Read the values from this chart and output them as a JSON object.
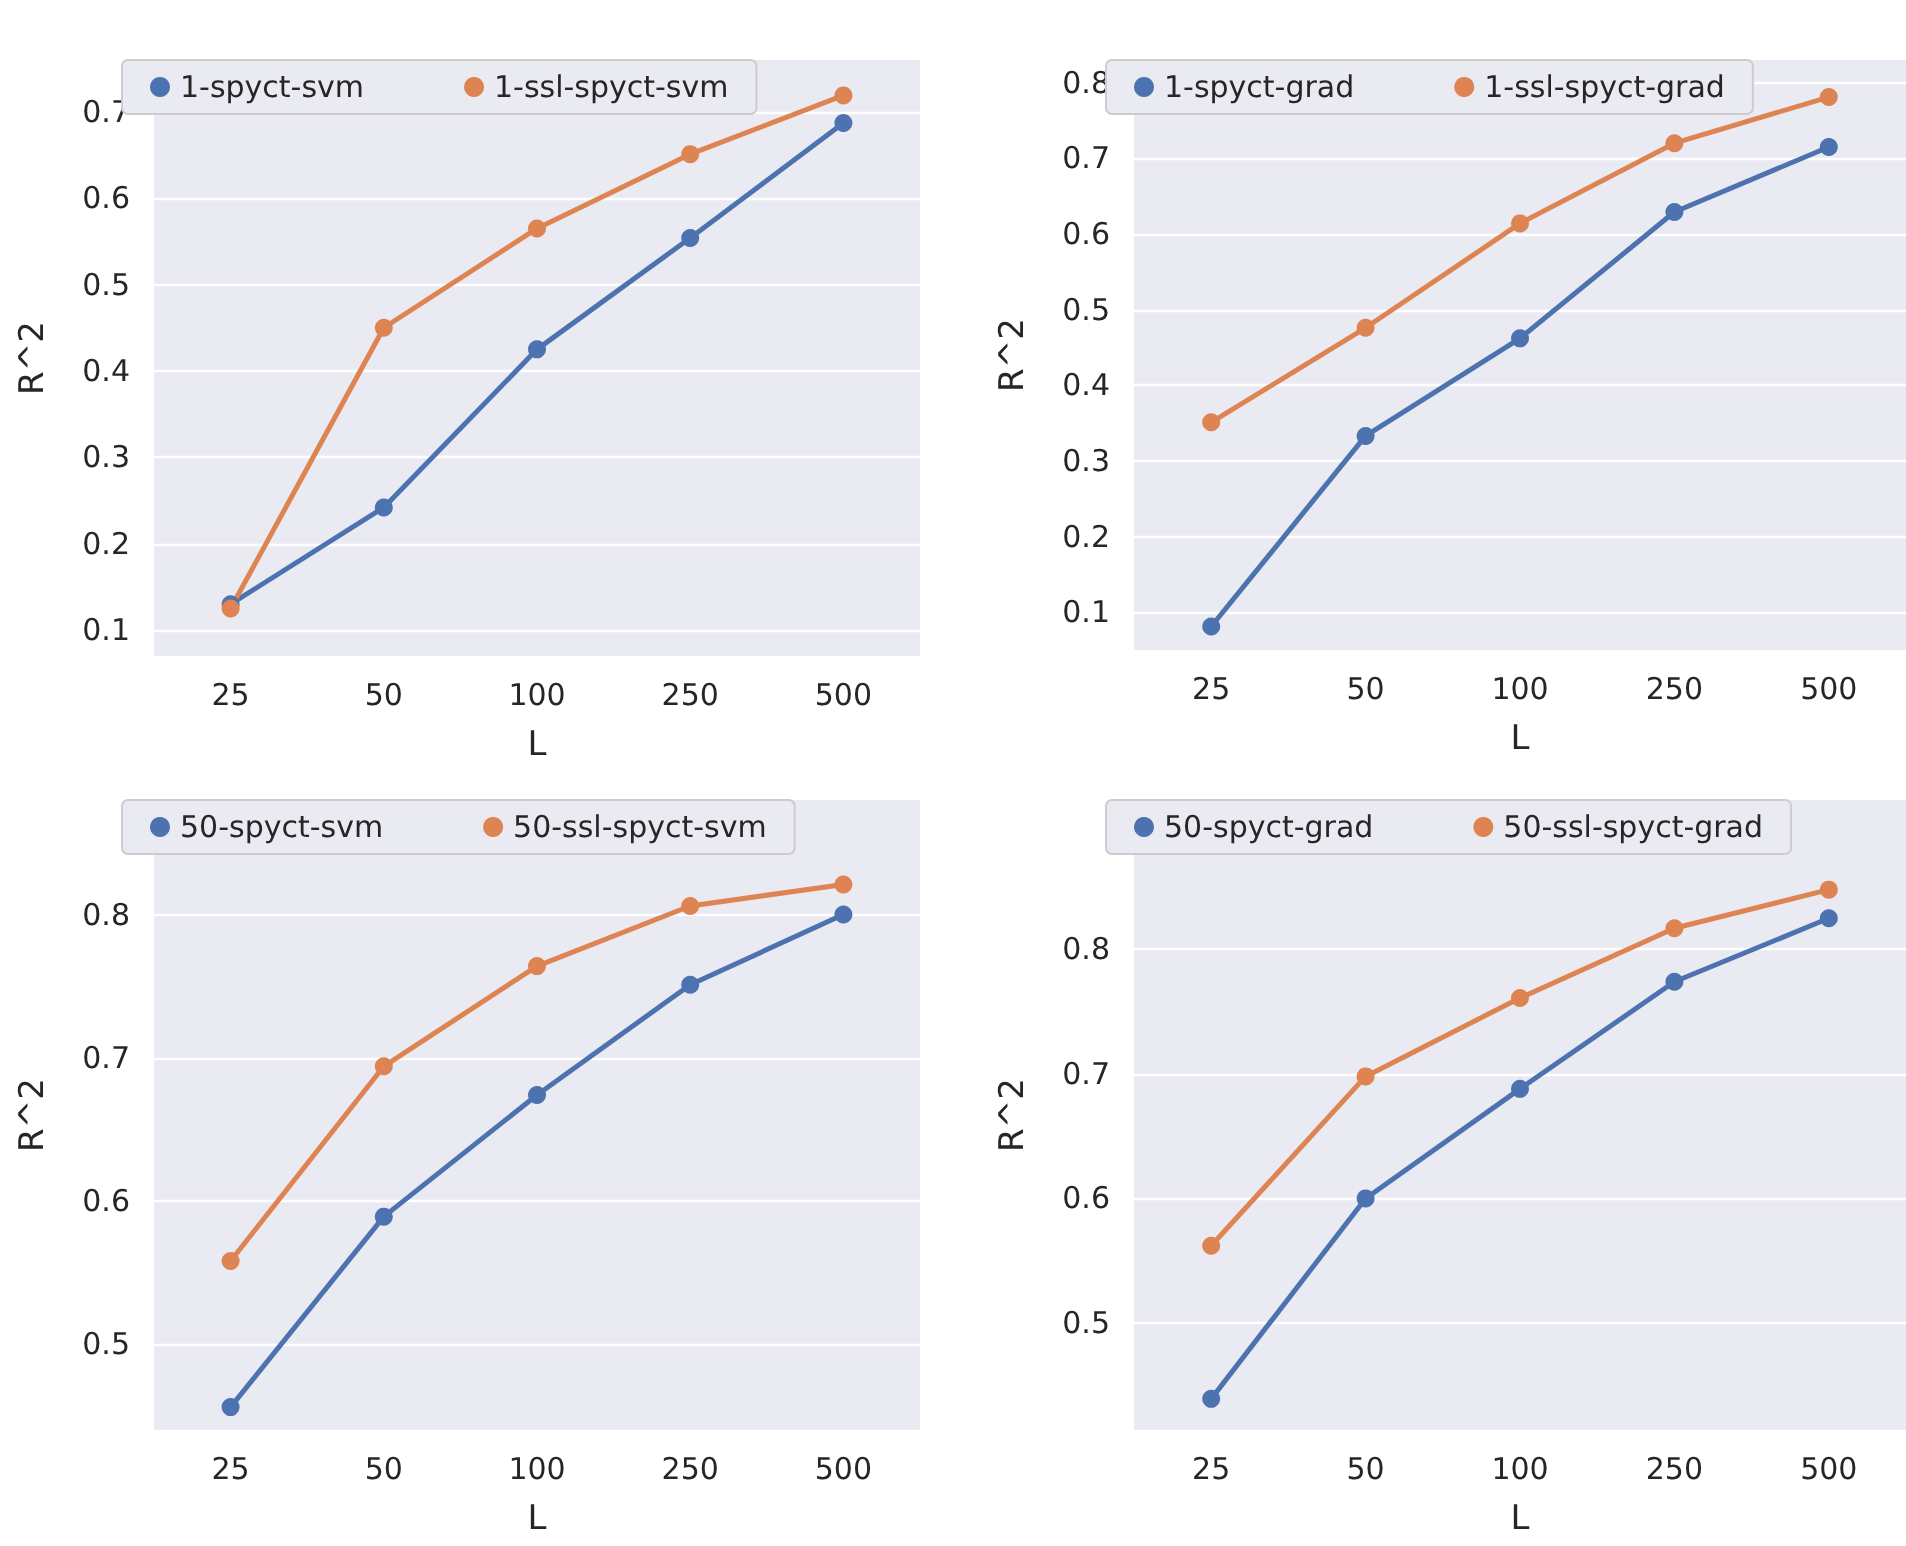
{
  "chart_data": [
    {
      "type": "line",
      "xlabel": "L",
      "ylabel": "R^2",
      "categories": [
        "25",
        "50",
        "100",
        "250",
        "500"
      ],
      "ylim": [
        0.07,
        0.76
      ],
      "yticks": [
        0.1,
        0.2,
        0.3,
        0.4,
        0.5,
        0.6,
        0.7
      ],
      "grid": "y",
      "legend": "top",
      "marker": "circle",
      "series": [
        {
          "name": "1-spyct-svm",
          "color": "#4c72b0",
          "values": [
            0.13,
            0.242,
            0.425,
            0.554,
            0.687
          ]
        },
        {
          "name": "1-ssl-spyct-svm",
          "color": "#dd8452",
          "values": [
            0.125,
            0.45,
            0.565,
            0.651,
            0.719
          ]
        }
      ]
    },
    {
      "type": "line",
      "xlabel": "L",
      "ylabel": "R^2",
      "categories": [
        "25",
        "50",
        "100",
        "250",
        "500"
      ],
      "ylim": [
        0.05,
        0.83
      ],
      "yticks": [
        0.1,
        0.2,
        0.3,
        0.4,
        0.5,
        0.6,
        0.7,
        0.8
      ],
      "grid": "y",
      "legend": "top",
      "marker": "circle",
      "series": [
        {
          "name": "1-spyct-grad",
          "color": "#4c72b0",
          "values": [
            0.081,
            0.333,
            0.462,
            0.629,
            0.715
          ]
        },
        {
          "name": "1-ssl-spyct-grad",
          "color": "#dd8452",
          "values": [
            0.351,
            0.476,
            0.614,
            0.72,
            0.781
          ]
        }
      ]
    },
    {
      "type": "line",
      "xlabel": "L",
      "ylabel": "R^2",
      "categories": [
        "25",
        "50",
        "100",
        "250",
        "500"
      ],
      "ylim": [
        0.44,
        0.88
      ],
      "yticks": [
        0.5,
        0.6,
        0.7,
        0.8
      ],
      "grid": "y",
      "legend": "top",
      "marker": "circle",
      "series": [
        {
          "name": "50-spyct-svm",
          "color": "#4c72b0",
          "values": [
            0.456,
            0.589,
            0.674,
            0.751,
            0.8
          ]
        },
        {
          "name": "50-ssl-spyct-svm",
          "color": "#dd8452",
          "values": [
            0.558,
            0.694,
            0.764,
            0.806,
            0.821
          ]
        }
      ]
    },
    {
      "type": "line",
      "xlabel": "L",
      "ylabel": "R^2",
      "categories": [
        "25",
        "50",
        "100",
        "250",
        "500"
      ],
      "ylim": [
        0.414,
        0.92
      ],
      "yticks": [
        0.5,
        0.6,
        0.7,
        0.8
      ],
      "grid": "y",
      "legend": "top",
      "marker": "circle",
      "series": [
        {
          "name": "50-spyct-grad",
          "color": "#4c72b0",
          "values": [
            0.439,
            0.6,
            0.688,
            0.774,
            0.825
          ]
        },
        {
          "name": "50-ssl-spyct-grad",
          "color": "#dd8452",
          "values": [
            0.562,
            0.698,
            0.761,
            0.817,
            0.848
          ]
        }
      ]
    }
  ]
}
